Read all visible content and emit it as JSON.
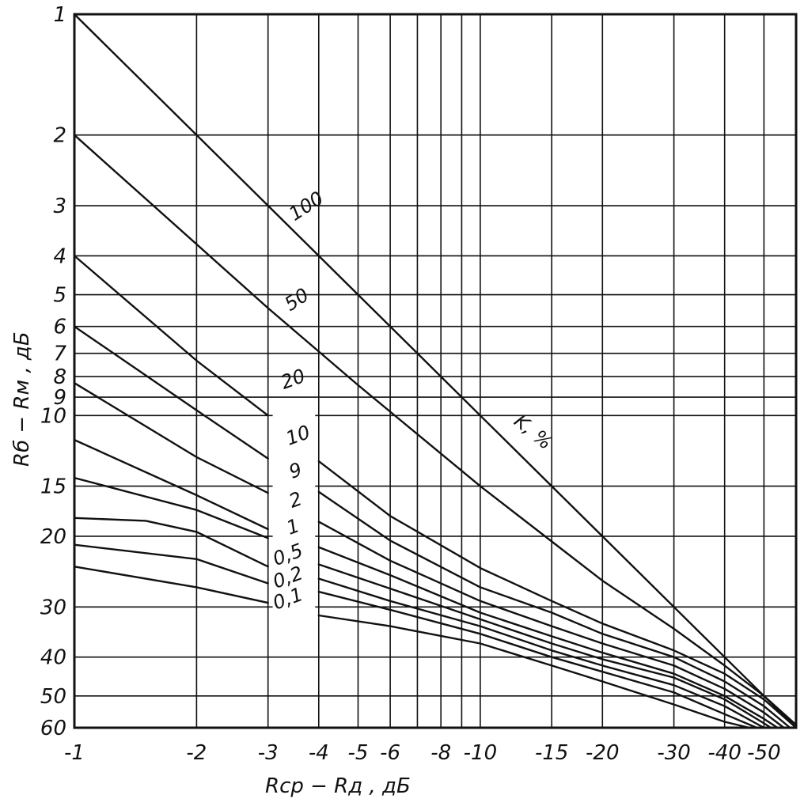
{
  "chart_data": {
    "type": "line",
    "title": "",
    "xlabel": "Rср − Rд , дБ",
    "ylabel": "Rб − Rм , дБ",
    "x_scale": "log",
    "y_scale": "log",
    "x_range": [
      -1,
      -60
    ],
    "y_range": [
      1,
      60
    ],
    "grid": true,
    "x_ticks": [
      {
        "value": 1,
        "label": "-1"
      },
      {
        "value": 2,
        "label": "-2"
      },
      {
        "value": 3,
        "label": "-3"
      },
      {
        "value": 4,
        "label": "-4"
      },
      {
        "value": 5,
        "label": "-5"
      },
      {
        "value": 6,
        "label": "-6"
      },
      {
        "value": 8,
        "label": "-8"
      },
      {
        "value": 10,
        "label": "-10"
      },
      {
        "value": 15,
        "label": "-15"
      },
      {
        "value": 20,
        "label": "-20"
      },
      {
        "value": 30,
        "label": "-30"
      },
      {
        "value": 40,
        "label": "-40"
      },
      {
        "value": 50,
        "label": "-50"
      }
    ],
    "x_grid_extra": [
      7,
      9,
      60
    ],
    "y_ticks": [
      {
        "value": 1,
        "label": "1"
      },
      {
        "value": 2,
        "label": "2"
      },
      {
        "value": 3,
        "label": "3"
      },
      {
        "value": 4,
        "label": "4"
      },
      {
        "value": 5,
        "label": "5"
      },
      {
        "value": 6,
        "label": "6"
      },
      {
        "value": 7,
        "label": "7"
      },
      {
        "value": 8,
        "label": "8"
      },
      {
        "value": 9,
        "label": "9"
      },
      {
        "value": 10,
        "label": "10"
      },
      {
        "value": 15,
        "label": "15"
      },
      {
        "value": 20,
        "label": "20"
      },
      {
        "value": 30,
        "label": "30"
      },
      {
        "value": 40,
        "label": "40"
      },
      {
        "value": 50,
        "label": "50"
      },
      {
        "value": 60,
        "label": "60"
      }
    ],
    "parameter_label": "K, %",
    "series": [
      {
        "name": "100",
        "x": [
          1,
          3,
          5,
          10,
          15,
          20,
          30,
          40,
          50,
          60
        ],
        "y": [
          1,
          3,
          5,
          10,
          15,
          20,
          30,
          40,
          50,
          60
        ]
      },
      {
        "name": "50",
        "x": [
          1,
          3,
          5,
          10,
          15,
          20,
          30,
          40,
          50,
          60
        ],
        "y": [
          2,
          5.4,
          8.4,
          15,
          20.6,
          25.8,
          34,
          42,
          50,
          59
        ]
      },
      {
        "name": "20",
        "x": [
          1,
          2,
          3
        ],
        "y": [
          4,
          7.3,
          10
        ]
      },
      {
        "name": "20",
        "x": [
          4,
          6,
          10,
          15,
          20,
          30,
          40,
          50,
          60
        ],
        "y": [
          13,
          17.8,
          24,
          29,
          33,
          38.5,
          44,
          51,
          60
        ]
      },
      {
        "name": "10",
        "x": [
          1,
          2,
          3
        ],
        "y": [
          6,
          9.7,
          12.8
        ]
      },
      {
        "name": "10",
        "x": [
          4,
          6,
          10,
          15,
          20,
          30,
          40,
          50,
          58
        ],
        "y": [
          15.5,
          20.5,
          26.8,
          31,
          35,
          40,
          46,
          53,
          60
        ]
      },
      {
        "name": "9",
        "x": [
          1,
          2,
          3
        ],
        "y": [
          8.3,
          12.7,
          15.6
        ]
      },
      {
        "name": "9",
        "x": [
          4,
          6,
          10,
          15,
          20,
          30,
          40,
          50,
          56
        ],
        "y": [
          18.4,
          23,
          29,
          33.5,
          37,
          42,
          48,
          55,
          60
        ]
      },
      {
        "name": "2",
        "x": [
          1,
          2,
          3
        ],
        "y": [
          11.5,
          15.8,
          19.2
        ]
      },
      {
        "name": "2",
        "x": [
          4,
          6,
          10,
          15,
          20,
          30,
          40,
          50,
          54
        ],
        "y": [
          21.3,
          25,
          31,
          35.5,
          39,
          44,
          50,
          57,
          60
        ]
      },
      {
        "name": "1",
        "x": [
          1,
          2,
          3
        ],
        "y": [
          14.3,
          17.2,
          20.2
        ]
      },
      {
        "name": "1",
        "x": [
          4,
          6,
          10,
          15,
          20,
          30,
          40,
          50,
          52
        ],
        "y": [
          23.5,
          27,
          32.2,
          37,
          40.5,
          45,
          51,
          58.5,
          60
        ]
      },
      {
        "name": "0,5",
        "x": [
          1,
          1.5,
          2,
          3
        ],
        "y": [
          18,
          18.3,
          19.5,
          23.8
        ]
      },
      {
        "name": "0,5",
        "x": [
          4,
          6,
          10,
          15,
          20,
          30,
          40,
          50
        ],
        "y": [
          25.5,
          29,
          33.5,
          38.5,
          42,
          47,
          53,
          60
        ]
      },
      {
        "name": "0,2",
        "x": [
          1,
          2,
          3
        ],
        "y": [
          21,
          22.8,
          26.2
        ]
      },
      {
        "name": "0,2",
        "x": [
          4,
          6,
          10,
          15,
          20,
          30,
          40,
          48
        ],
        "y": [
          27.5,
          30.5,
          35,
          40,
          43.5,
          49,
          55.5,
          60
        ]
      },
      {
        "name": "0,1",
        "x": [
          1,
          2,
          3
        ],
        "y": [
          23.8,
          26.8,
          29.3
        ]
      },
      {
        "name": "0,1",
        "x": [
          4,
          6,
          10,
          15,
          20,
          30,
          40,
          46
        ],
        "y": [
          31.5,
          33.5,
          37,
          42,
          46,
          52.5,
          58,
          60
        ]
      }
    ],
    "series_labels": [
      {
        "text": "100",
        "x": 3.8,
        "y": 3.1,
        "angle": -33
      },
      {
        "text": "50",
        "x": 3.6,
        "y": 5.3,
        "angle": -33
      },
      {
        "text": "20",
        "x": 3.5,
        "y": 8.4,
        "angle": -20
      },
      {
        "text": "10",
        "x": 3.6,
        "y": 11.6,
        "angle": -20
      },
      {
        "text": "9",
        "x": 3.55,
        "y": 14.2,
        "angle": -20
      },
      {
        "text": "2",
        "x": 3.55,
        "y": 16.8,
        "angle": -20
      },
      {
        "text": "1",
        "x": 3.5,
        "y": 19.6,
        "angle": -20
      },
      {
        "text": "0,5",
        "x": 3.4,
        "y": 23.0,
        "angle": -20
      },
      {
        "text": "0,2",
        "x": 3.4,
        "y": 26.2,
        "angle": -20
      },
      {
        "text": "0,1",
        "x": 3.4,
        "y": 29.6,
        "angle": -20
      }
    ]
  }
}
